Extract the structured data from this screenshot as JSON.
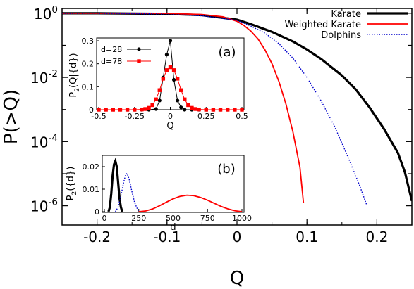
{
  "chart_data": [
    {
      "type": "line",
      "panel": "main",
      "xlabel": "Q",
      "ylabel": "P(>Q)",
      "xlim": [
        -0.25,
        0.25
      ],
      "ylim_log10": [
        -6.6,
        0.15
      ],
      "yscale": "log",
      "x_ticks": [
        -0.2,
        -0.1,
        0,
        0.1,
        0.2
      ],
      "x_tick_labels": [
        "-0.2",
        "-0.1",
        "0",
        "0.1",
        "0.2"
      ],
      "y_ticks_log10": [
        0,
        -2,
        -4,
        -6
      ],
      "y_tick_labels": [
        {
          "base": "10",
          "exp": "0"
        },
        {
          "base": "10",
          "exp": "-2"
        },
        {
          "base": "10",
          "exp": "-4"
        },
        {
          "base": "10",
          "exp": "-6"
        }
      ],
      "legend_position": "top-right",
      "series": [
        {
          "name": "Karate",
          "color": "#000000",
          "style": "solid-thick",
          "x": [
            -0.25,
            -0.2,
            -0.15,
            -0.1,
            -0.05,
            0,
            0.02,
            0.05,
            0.08,
            0.1,
            0.12,
            0.15,
            0.17,
            0.19,
            0.21,
            0.23,
            0.24,
            0.25
          ],
          "y_log10": [
            0,
            0,
            -0.01,
            -0.02,
            -0.06,
            -0.2,
            -0.34,
            -0.58,
            -0.88,
            -1.13,
            -1.42,
            -1.94,
            -2.38,
            -2.95,
            -3.6,
            -4.35,
            -4.95,
            -5.85
          ]
        },
        {
          "name": "Weighted Karate",
          "color": "#ff0000",
          "style": "solid",
          "x": [
            -0.25,
            -0.15,
            -0.1,
            -0.05,
            -0.02,
            0,
            0.01,
            0.02,
            0.03,
            0.04,
            0.05,
            0.06,
            0.07,
            0.08,
            0.09,
            0.095
          ],
          "y_log10": [
            0,
            0,
            -0.005,
            -0.04,
            -0.11,
            -0.25,
            -0.38,
            -0.56,
            -0.8,
            -1.14,
            -1.57,
            -2.13,
            -2.83,
            -3.7,
            -4.8,
            -5.9
          ]
        },
        {
          "name": "Dolphins",
          "color": "#0000cc",
          "style": "dotted",
          "x": [
            -0.25,
            -0.15,
            -0.1,
            -0.05,
            0,
            0.02,
            0.04,
            0.06,
            0.08,
            0.1,
            0.12,
            0.14,
            0.16,
            0.175,
            0.185
          ],
          "y_log10": [
            0,
            -0.01,
            -0.03,
            -0.08,
            -0.22,
            -0.4,
            -0.62,
            -0.95,
            -1.4,
            -2.0,
            -2.72,
            -3.55,
            -4.55,
            -5.35,
            -5.95
          ]
        }
      ]
    },
    {
      "type": "line",
      "panel": "inset-a",
      "label": "(a)",
      "xlabel": "Q",
      "ylabel": {
        "base": "P",
        "sub": "2",
        "rest": "(Q|{d})"
      },
      "xlim": [
        -0.5,
        0.5
      ],
      "ylim": [
        0,
        0.3
      ],
      "x_ticks": [
        -0.5,
        -0.25,
        0,
        0.25,
        0.5
      ],
      "x_tick_labels": [
        "-0.5",
        "-0.25",
        "0",
        "0.25",
        "0.5"
      ],
      "y_ticks": [
        0,
        0.1,
        0.2,
        0.3
      ],
      "y_tick_labels": [
        "0",
        "0.1",
        "0.2",
        "0.3"
      ],
      "series": [
        {
          "name": "d=28",
          "color": "#000000",
          "marker": "circle",
          "x": [
            -0.5,
            -0.45,
            -0.4,
            -0.35,
            -0.3,
            -0.25,
            -0.2,
            -0.15,
            -0.1,
            -0.075,
            -0.05,
            -0.025,
            0,
            0.025,
            0.05,
            0.075,
            0.1,
            0.15,
            0.2,
            0.25,
            0.3,
            0.35,
            0.4,
            0.45,
            0.5
          ],
          "y": [
            0,
            0,
            0,
            0,
            0,
            0,
            0,
            0,
            0.003,
            0.04,
            0.14,
            0.24,
            0.3,
            0.13,
            0.04,
            0.01,
            0,
            0,
            0,
            0,
            0,
            0,
            0,
            0,
            0
          ]
        },
        {
          "name": "d=78",
          "color": "#ff0000",
          "marker": "square",
          "x": [
            -0.5,
            -0.45,
            -0.4,
            -0.35,
            -0.3,
            -0.25,
            -0.2,
            -0.175,
            -0.15,
            -0.125,
            -0.1,
            -0.075,
            -0.05,
            -0.025,
            0,
            0.025,
            0.05,
            0.075,
            0.1,
            0.125,
            0.15,
            0.175,
            0.2,
            0.25,
            0.3,
            0.35,
            0.4,
            0.45,
            0.5
          ],
          "y": [
            0,
            0,
            0,
            0,
            0,
            0,
            0.001,
            0.003,
            0.008,
            0.02,
            0.045,
            0.085,
            0.135,
            0.172,
            0.185,
            0.172,
            0.135,
            0.085,
            0.045,
            0.02,
            0.008,
            0.003,
            0.001,
            0,
            0,
            0,
            0,
            0,
            0
          ]
        }
      ]
    },
    {
      "type": "line",
      "panel": "inset-b",
      "label": "(b)",
      "xlabel": "d",
      "ylabel": {
        "base": "P",
        "sub": "2",
        "rest": "({d})"
      },
      "xlim": [
        0,
        1000
      ],
      "ylim": [
        0,
        0.025
      ],
      "x_ticks": [
        0,
        250,
        500,
        750,
        1000
      ],
      "x_tick_labels": [
        "0",
        "250",
        "500",
        "750",
        "1000"
      ],
      "y_ticks": [
        0,
        0.01,
        0.02
      ],
      "y_tick_labels": [
        "0",
        "0.01",
        "0.02"
      ],
      "series": [
        {
          "name": "Karate",
          "color": "#000000",
          "style": "solid-thick",
          "x": [
            30,
            40,
            50,
            60,
            70,
            80,
            90,
            100,
            110,
            120,
            130
          ],
          "y": [
            0,
            0.002,
            0.008,
            0.016,
            0.021,
            0.0225,
            0.02,
            0.013,
            0.006,
            0.002,
            0
          ]
        },
        {
          "name": "Dolphins",
          "color": "#0000cc",
          "style": "dotted",
          "x": [
            80,
            100,
            120,
            140,
            155,
            165,
            180,
            200,
            220,
            240,
            260
          ],
          "y": [
            0,
            0.002,
            0.007,
            0.013,
            0.0165,
            0.017,
            0.0145,
            0.009,
            0.004,
            0.0012,
            0
          ]
        },
        {
          "name": "Weighted Karate",
          "color": "#ff0000",
          "style": "solid",
          "x": [
            250,
            300,
            350,
            400,
            450,
            500,
            550,
            600,
            650,
            700,
            750,
            800,
            850,
            900,
            950,
            1000
          ],
          "y": [
            0,
            0.0003,
            0.0012,
            0.0026,
            0.0042,
            0.0057,
            0.0068,
            0.0073,
            0.0071,
            0.0063,
            0.0051,
            0.0037,
            0.0023,
            0.0012,
            0.0004,
            0
          ]
        }
      ]
    }
  ]
}
